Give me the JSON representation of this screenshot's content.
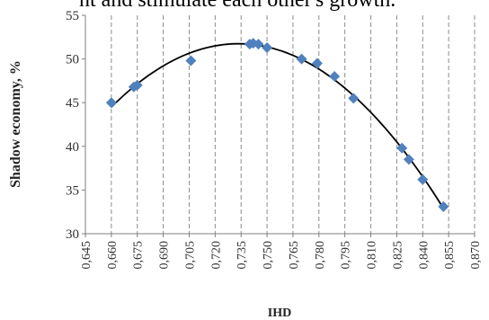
{
  "header_text": "nt and stimulate each other's growth.",
  "chart_data": {
    "type": "scatter",
    "xlabel": "IHD",
    "ylabel": "Shadow economy, %",
    "xlim": [
      0.645,
      0.87
    ],
    "ylim": [
      30,
      55
    ],
    "x_ticks": [
      "0,645",
      "0,660",
      "0,675",
      "0,690",
      "0,705",
      "0,720",
      "0,735",
      "0,750",
      "0,765",
      "0,780",
      "0,795",
      "0,810",
      "0,825",
      "0,840",
      "0,855",
      "0,870"
    ],
    "y_ticks": [
      "30",
      "35",
      "40",
      "45",
      "50",
      "55"
    ],
    "grid": "vertical dashed",
    "marker_color": "#4f81bd",
    "trendline": "polynomial",
    "points": [
      {
        "x": 0.66,
        "y": 45.0
      },
      {
        "x": 0.673,
        "y": 46.8
      },
      {
        "x": 0.675,
        "y": 47.0
      },
      {
        "x": 0.706,
        "y": 49.8
      },
      {
        "x": 0.74,
        "y": 51.7
      },
      {
        "x": 0.742,
        "y": 51.8
      },
      {
        "x": 0.745,
        "y": 51.7
      },
      {
        "x": 0.75,
        "y": 51.3
      },
      {
        "x": 0.77,
        "y": 50.0
      },
      {
        "x": 0.779,
        "y": 49.5
      },
      {
        "x": 0.789,
        "y": 48.0
      },
      {
        "x": 0.8,
        "y": 45.5
      },
      {
        "x": 0.828,
        "y": 39.8
      },
      {
        "x": 0.832,
        "y": 38.5
      },
      {
        "x": 0.84,
        "y": 36.2
      },
      {
        "x": 0.852,
        "y": 33.1
      }
    ]
  }
}
